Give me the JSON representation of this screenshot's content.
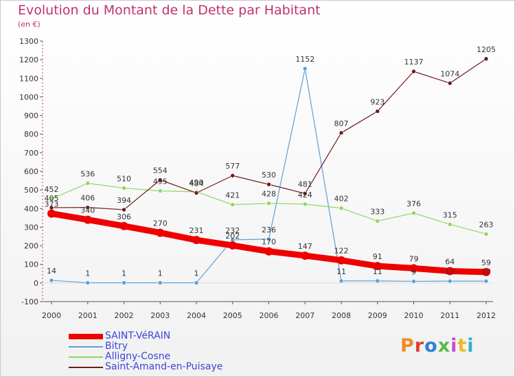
{
  "header": {
    "title": "Evolution du Montant de la Dette par Habitant",
    "subtitle": "(en €)"
  },
  "logo": {
    "text": "Proxiti",
    "colors": [
      "#f08a24",
      "#e23b3b",
      "#2f7fd6",
      "#58b947",
      "#c94bc9",
      "#f0b824",
      "#2fb0c9"
    ]
  },
  "colors": {
    "title": "#c0306e",
    "axis_text": "#333333",
    "legend_text": "#3b44d8"
  },
  "chart_data": {
    "type": "line",
    "title": "Evolution du Montant de la Dette par Habitant",
    "subtitle": "(en €)",
    "x": [
      2000,
      2001,
      2002,
      2003,
      2004,
      2005,
      2006,
      2007,
      2008,
      2009,
      2010,
      2011,
      2012
    ],
    "ylim": [
      -100,
      1300
    ],
    "yticks": [
      -100,
      0,
      100,
      200,
      300,
      400,
      500,
      600,
      700,
      800,
      900,
      1000,
      1100,
      1200,
      1300
    ],
    "grid": false,
    "legend_position": "bottom-left",
    "series": [
      {
        "name": "SAINT-VéRAIN",
        "color": "#ee0000",
        "values": [
          373,
          340,
          306,
          270,
          231,
          202,
          170,
          147,
          122,
          91,
          79,
          64,
          59
        ]
      },
      {
        "name": "Bitry",
        "color": "#5aa0d8",
        "values": [
          14,
          1,
          1,
          1,
          1,
          232,
          236,
          1152,
          11,
          11,
          9,
          10,
          10
        ]
      },
      {
        "name": "Alligny-Cosne",
        "color": "#8fd65c",
        "values": [
          452,
          536,
          510,
          495,
          490,
          421,
          428,
          424,
          402,
          333,
          376,
          315,
          263
        ]
      },
      {
        "name": "Saint-Amand-en-Puisaye",
        "color": "#6e1a1a",
        "values": [
          405,
          406,
          394,
          554,
          484,
          577,
          530,
          481,
          807,
          923,
          1137,
          1074,
          1205
        ]
      }
    ]
  }
}
